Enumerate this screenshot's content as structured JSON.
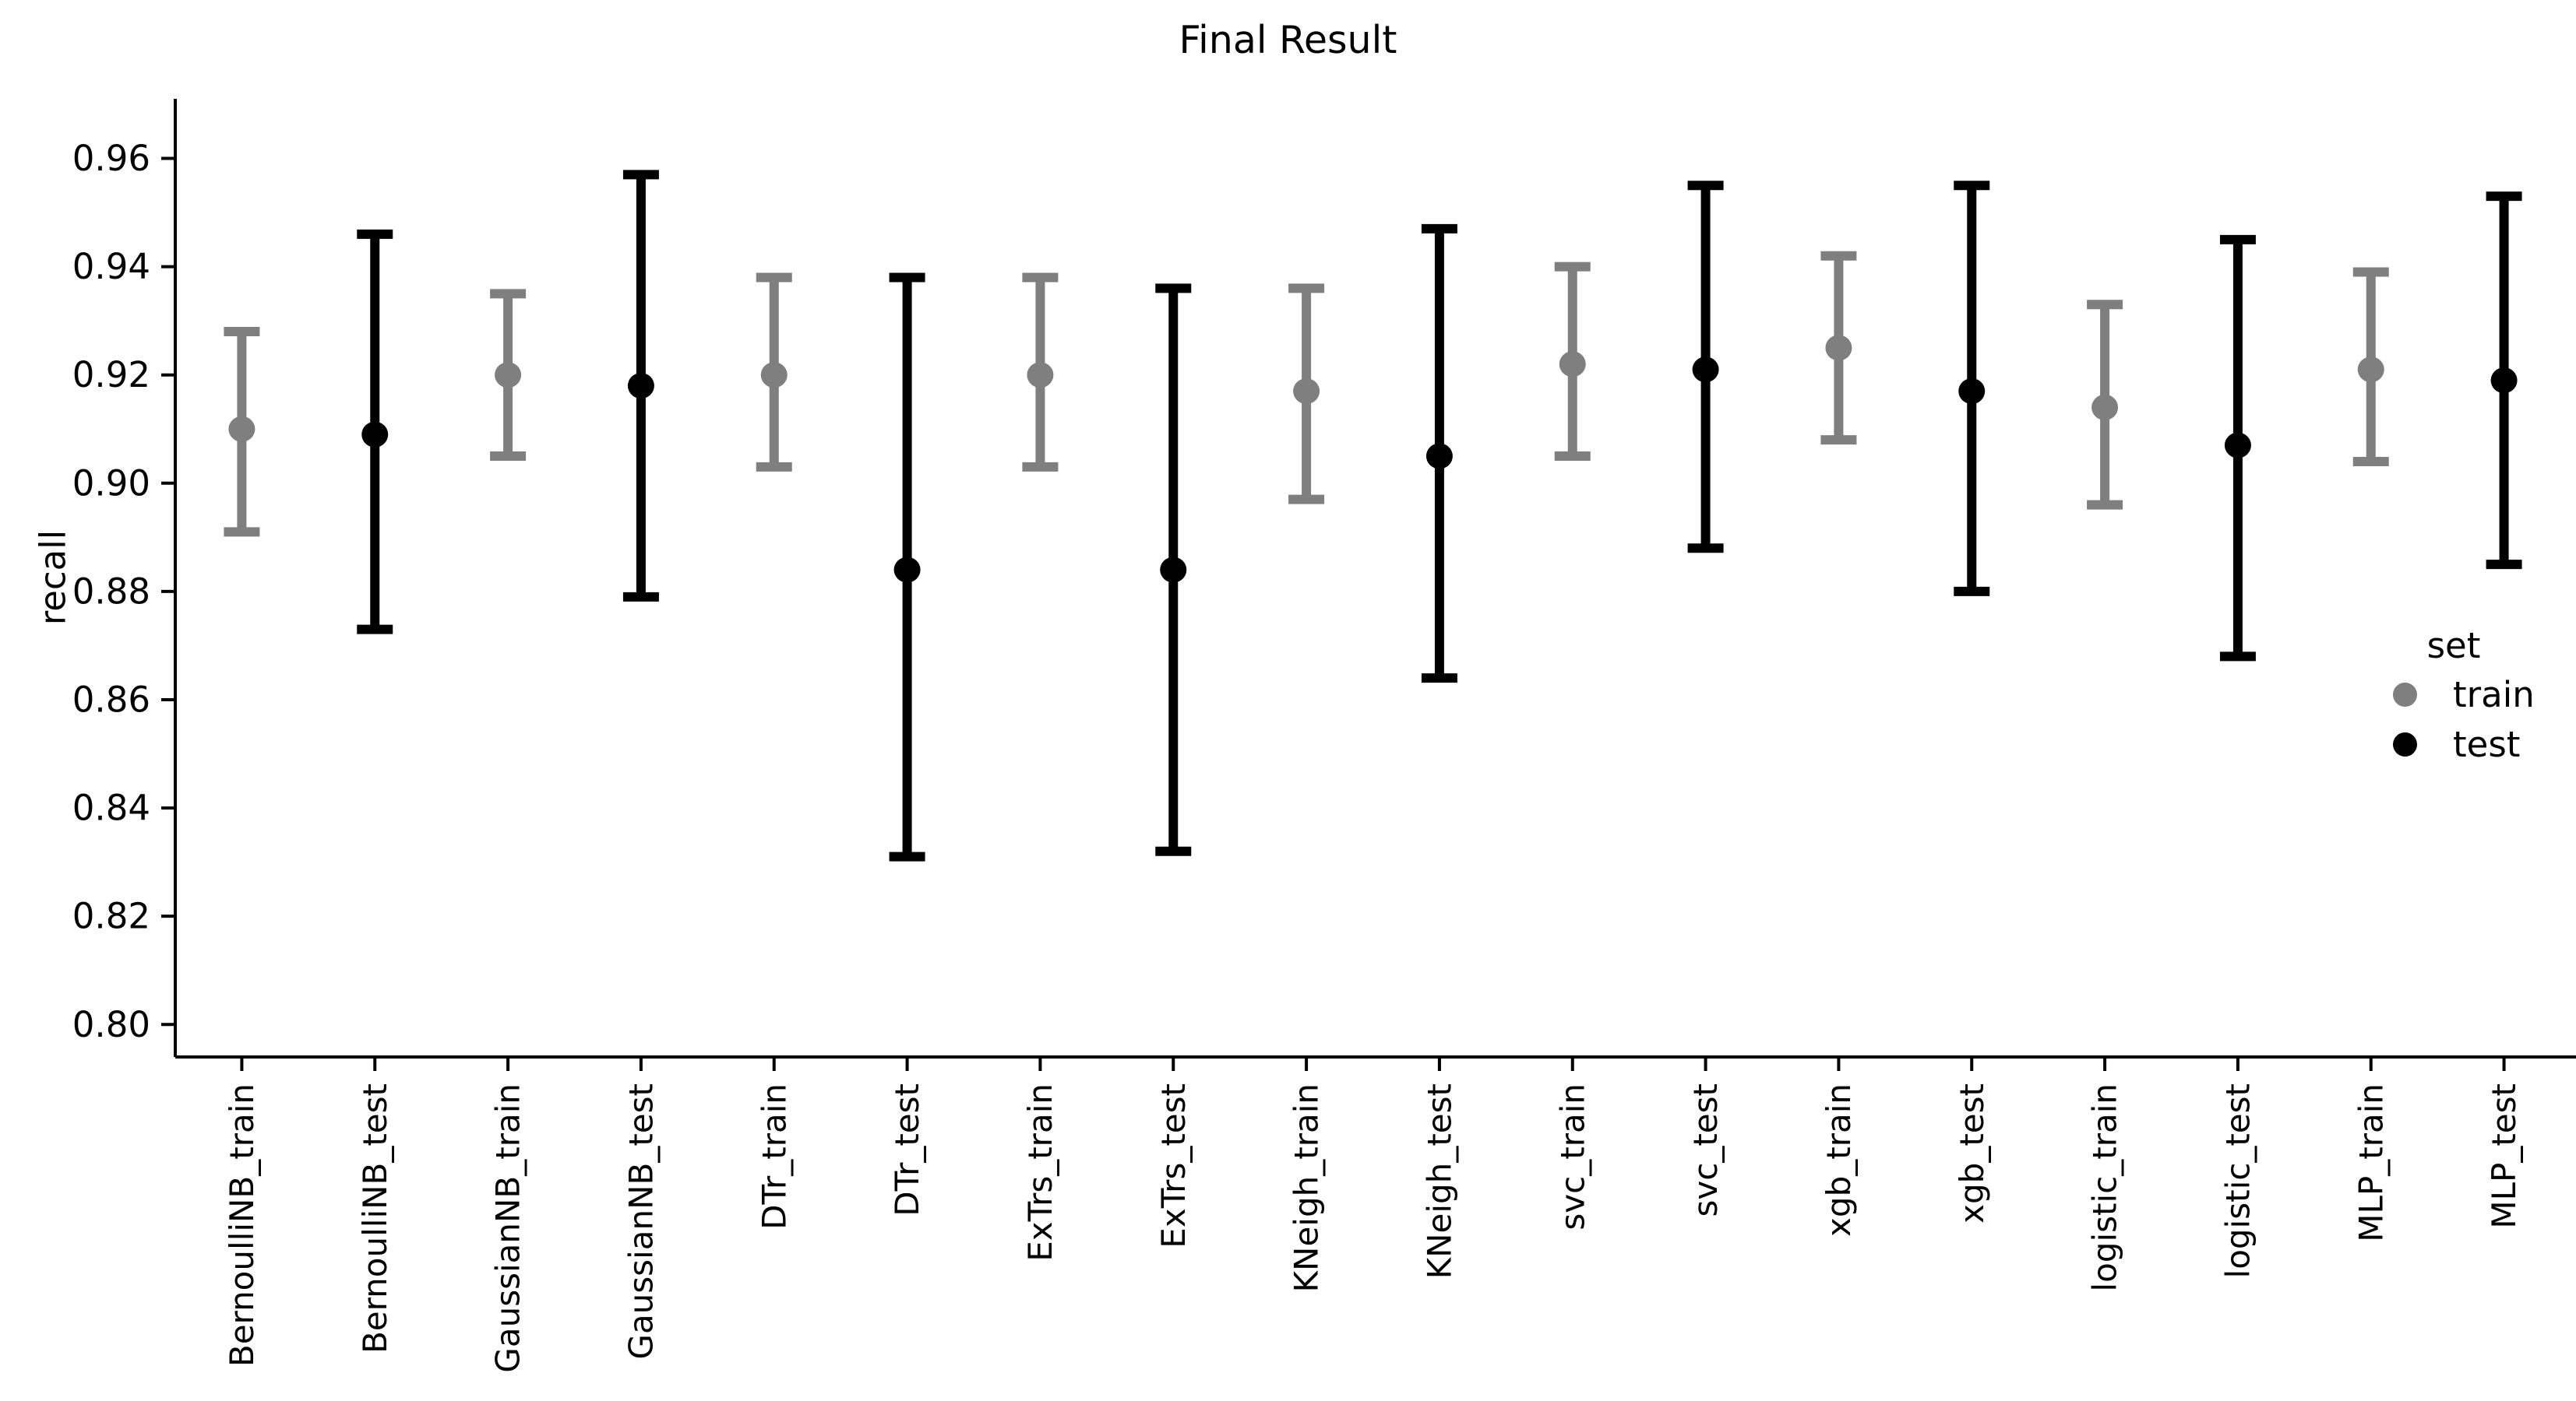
{
  "figure": {
    "title": "Final Result",
    "background": "#ffffff"
  },
  "legend": {
    "title": "set",
    "entries": [
      {
        "label": "train",
        "color": "#7f7f7f"
      },
      {
        "label": "test",
        "color": "#000000"
      }
    ]
  },
  "chart_data": {
    "type": "scatter",
    "subtype": "errorbar-point-plot",
    "title": "Final Result",
    "xlabel": "",
    "ylabel": "recall",
    "ylim": [
      0.794,
      0.971
    ],
    "grid": false,
    "legend_position": "center-right",
    "ytick_labels": [
      "0.80",
      "0.82",
      "0.84",
      "0.86",
      "0.88",
      "0.90",
      "0.92",
      "0.94",
      "0.96"
    ],
    "yticks": [
      0.8,
      0.82,
      0.84,
      0.86,
      0.88,
      0.9,
      0.92,
      0.94,
      0.96
    ],
    "categories": [
      "BernoulliNB_train",
      "BernoulliNB_test",
      "GaussianNB_train",
      "GaussianNB_test",
      "DTr_train",
      "DTr_test",
      "ExTrs_train",
      "ExTrs_test",
      "KNeigh_train",
      "KNeigh_test",
      "svc_train",
      "svc_test",
      "xgb_train",
      "xgb_test",
      "logistic_train",
      "logistic_test",
      "MLP_train",
      "MLP_test"
    ],
    "points": [
      {
        "label": "BernoulliNB_train",
        "set": "train",
        "mean": 0.91,
        "lo": 0.891,
        "hi": 0.928
      },
      {
        "label": "BernoulliNB_test",
        "set": "test",
        "mean": 0.909,
        "lo": 0.873,
        "hi": 0.946
      },
      {
        "label": "GaussianNB_train",
        "set": "train",
        "mean": 0.92,
        "lo": 0.905,
        "hi": 0.935
      },
      {
        "label": "GaussianNB_test",
        "set": "test",
        "mean": 0.918,
        "lo": 0.879,
        "hi": 0.957
      },
      {
        "label": "DTr_train",
        "set": "train",
        "mean": 0.92,
        "lo": 0.903,
        "hi": 0.938
      },
      {
        "label": "DTr_test",
        "set": "test",
        "mean": 0.884,
        "lo": 0.831,
        "hi": 0.938
      },
      {
        "label": "ExTrs_train",
        "set": "train",
        "mean": 0.92,
        "lo": 0.903,
        "hi": 0.938
      },
      {
        "label": "ExTrs_test",
        "set": "test",
        "mean": 0.884,
        "lo": 0.832,
        "hi": 0.936
      },
      {
        "label": "KNeigh_train",
        "set": "train",
        "mean": 0.917,
        "lo": 0.897,
        "hi": 0.936
      },
      {
        "label": "KNeigh_test",
        "set": "test",
        "mean": 0.905,
        "lo": 0.864,
        "hi": 0.947
      },
      {
        "label": "svc_train",
        "set": "train",
        "mean": 0.922,
        "lo": 0.905,
        "hi": 0.94
      },
      {
        "label": "svc_test",
        "set": "test",
        "mean": 0.921,
        "lo": 0.888,
        "hi": 0.955
      },
      {
        "label": "xgb_train",
        "set": "train",
        "mean": 0.925,
        "lo": 0.908,
        "hi": 0.942
      },
      {
        "label": "xgb_test",
        "set": "test",
        "mean": 0.917,
        "lo": 0.88,
        "hi": 0.955
      },
      {
        "label": "logistic_train",
        "set": "train",
        "mean": 0.914,
        "lo": 0.896,
        "hi": 0.933
      },
      {
        "label": "logistic_test",
        "set": "test",
        "mean": 0.907,
        "lo": 0.868,
        "hi": 0.945
      },
      {
        "label": "MLP_train",
        "set": "train",
        "mean": 0.921,
        "lo": 0.904,
        "hi": 0.939
      },
      {
        "label": "MLP_test",
        "set": "test",
        "mean": 0.919,
        "lo": 0.885,
        "hi": 0.953
      }
    ]
  }
}
